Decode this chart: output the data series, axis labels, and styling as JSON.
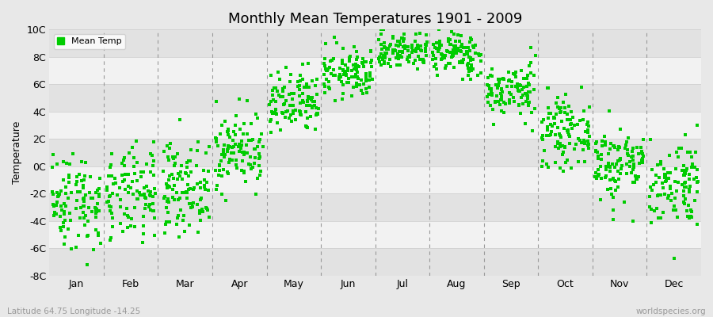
{
  "title": "Monthly Mean Temperatures 1901 - 2009",
  "ylabel": "Temperature",
  "subtitle": "Latitude 64.75 Longitude -14.25",
  "watermark": "worldspecies.org",
  "ylim": [
    -8,
    10
  ],
  "yticks": [
    -8,
    -6,
    -4,
    -2,
    0,
    2,
    4,
    6,
    8,
    10
  ],
  "ytick_labels": [
    "-8C",
    "-6C",
    "-4C",
    "-2C",
    "0C",
    "2C",
    "4C",
    "6C",
    "8C",
    "10C"
  ],
  "months": [
    "Jan",
    "Feb",
    "Mar",
    "Apr",
    "May",
    "Jun",
    "Jul",
    "Aug",
    "Sep",
    "Oct",
    "Nov",
    "Dec"
  ],
  "dot_color": "#00CC00",
  "bg_color": "#E8E8E8",
  "stripe_light": "#F2F2F2",
  "stripe_dark": "#E2E2E2",
  "grid_line_color": "#CCCCCC",
  "dash_color": "#999999",
  "legend_label": "Mean Temp",
  "seed": 42,
  "n_years": 109,
  "monthly_means": [
    -2.5,
    -2.2,
    -1.5,
    1.2,
    4.5,
    6.8,
    8.5,
    8.2,
    5.5,
    2.5,
    0.2,
    -1.2
  ],
  "monthly_stds": [
    1.8,
    1.7,
    1.6,
    1.4,
    1.2,
    0.9,
    0.7,
    0.8,
    1.0,
    1.2,
    1.4,
    1.6
  ]
}
